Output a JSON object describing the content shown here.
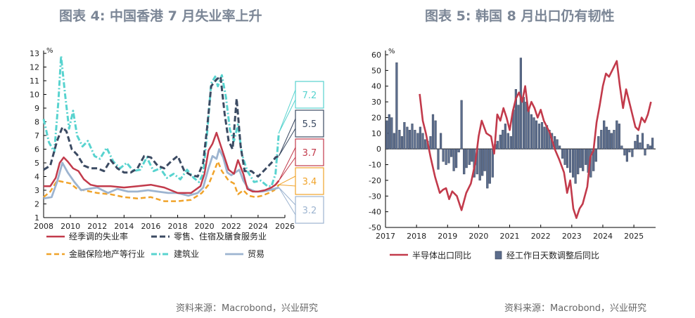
{
  "left_title": "图表 4:  中国香港 7 月失业率上升",
  "right_title": "图表 5:  韩国 8 月出口仍有韧性",
  "left_source": "资料来源：Macrobond，兴业研究",
  "right_source": "资料来源：Macrobond，兴业研究",
  "colors": {
    "unemployment": "#c23a4b",
    "retail": "#3b4a62",
    "finance": "#f0a32a",
    "construction": "#58d3cf",
    "trade": "#9db4d0",
    "semiconductor": "#c23a4b",
    "adjusted_bar": "#5c6d8c"
  },
  "chart_data": [
    {
      "type": "line",
      "title": "中国香港 7 月失业率上升",
      "unit": "%",
      "xlim": [
        2008,
        2026
      ],
      "ylim": [
        1,
        13
      ],
      "x_ticks": [
        "2008",
        "2010",
        "2012",
        "2014",
        "2016",
        "2018",
        "2020",
        "2022",
        "2024",
        "2026"
      ],
      "y_ticks": [
        "1",
        "2",
        "3",
        "4",
        "5",
        "6",
        "7",
        "8",
        "9",
        "10",
        "11",
        "12",
        "13"
      ],
      "legend": [
        "经季调的失业率",
        "零售、住宿及膳食服务业",
        "金融保险地产等行业",
        "建筑业",
        "贸易"
      ],
      "series": [
        {
          "name": "经季调的失业率",
          "style": "solid",
          "x": [
            2008.0,
            2008.5,
            2008.9,
            2009.2,
            2009.5,
            2009.8,
            2010.2,
            2010.6,
            2011.0,
            2011.5,
            2012.0,
            2013.0,
            2014.0,
            2015.0,
            2016.0,
            2017.0,
            2017.5,
            2018.0,
            2019.0,
            2019.7,
            2020.0,
            2020.3,
            2020.6,
            2020.9,
            2021.1,
            2021.4,
            2021.8,
            2022.2,
            2022.5,
            2022.9,
            2023.2,
            2023.6,
            2024.0,
            2024.5,
            2025.0,
            2025.3,
            2025.55
          ],
          "values": [
            3.3,
            3.3,
            3.9,
            5.0,
            5.4,
            5.1,
            4.6,
            4.4,
            3.8,
            3.4,
            3.3,
            3.3,
            3.2,
            3.3,
            3.4,
            3.2,
            3.0,
            2.8,
            2.8,
            3.3,
            4.2,
            5.9,
            6.4,
            7.2,
            6.6,
            5.7,
            4.5,
            4.2,
            5.2,
            4.2,
            3.1,
            2.9,
            2.9,
            3.0,
            3.2,
            3.4,
            3.7
          ]
        },
        {
          "name": "零售、住宿及膳食服务业",
          "style": "dashed",
          "x": [
            2008.0,
            2008.5,
            2009.0,
            2009.4,
            2009.7,
            2010.1,
            2010.5,
            2011.0,
            2011.5,
            2012.0,
            2012.5,
            2013.0,
            2013.5,
            2014.0,
            2014.5,
            2015.0,
            2015.5,
            2016.0,
            2016.5,
            2017.0,
            2017.5,
            2018.0,
            2018.5,
            2019.0,
            2019.5,
            2019.9,
            2020.2,
            2020.5,
            2020.9,
            2021.2,
            2021.5,
            2021.8,
            2022.1,
            2022.4,
            2022.7,
            2023.0,
            2023.5,
            2024.0,
            2024.5,
            2025.0,
            2025.3,
            2025.55
          ],
          "values": [
            4.5,
            4.8,
            6.6,
            7.6,
            7.3,
            6.0,
            5.6,
            4.8,
            4.6,
            4.6,
            4.4,
            5.2,
            4.6,
            4.3,
            4.3,
            4.6,
            5.5,
            5.4,
            4.8,
            4.6,
            5.1,
            5.5,
            4.4,
            4.1,
            4.0,
            5.0,
            7.6,
            10.6,
            11.1,
            11.3,
            8.6,
            6.6,
            6.0,
            9.7,
            6.2,
            4.4,
            4.4,
            4.0,
            4.5,
            5.0,
            5.4,
            5.5
          ]
        },
        {
          "name": "金融保险地产等行业",
          "style": "dashed",
          "x": [
            2008.0,
            2008.5,
            2009.0,
            2009.5,
            2010.0,
            2010.5,
            2011.0,
            2012.0,
            2013.0,
            2014.0,
            2015.0,
            2016.0,
            2017.0,
            2018.0,
            2019.0,
            2019.8,
            2020.3,
            2020.8,
            2021.0,
            2021.3,
            2021.8,
            2022.2,
            2022.5,
            2022.9,
            2023.3,
            2023.8,
            2024.3,
            2024.8,
            2025.2,
            2025.55
          ],
          "values": [
            2.5,
            2.9,
            3.7,
            3.6,
            3.5,
            3.1,
            3.0,
            2.8,
            2.7,
            2.5,
            2.4,
            2.5,
            2.2,
            2.2,
            2.3,
            2.8,
            3.4,
            4.6,
            5.1,
            4.4,
            3.7,
            3.5,
            2.7,
            3.0,
            2.6,
            2.5,
            2.6,
            2.8,
            3.0,
            3.4
          ]
        },
        {
          "name": "建筑业",
          "style": "dashdot",
          "x": [
            2008.0,
            2008.4,
            2008.8,
            2009.1,
            2009.3,
            2009.6,
            2009.9,
            2010.2,
            2010.5,
            2010.9,
            2011.3,
            2011.8,
            2012.2,
            2012.7,
            2013.2,
            2013.7,
            2014.2,
            2014.7,
            2015.2,
            2015.7,
            2016.2,
            2016.7,
            2017.2,
            2017.7,
            2018.2,
            2018.7,
            2019.2,
            2019.6,
            2019.9,
            2020.2,
            2020.5,
            2020.8,
            2021.0,
            2021.3,
            2021.6,
            2021.9,
            2022.2,
            2022.5,
            2022.8,
            2023.2,
            2023.7,
            2024.2,
            2024.7,
            2025.0,
            2025.3,
            2025.55
          ],
          "values": [
            8.2,
            6.5,
            5.8,
            9.5,
            12.8,
            10.0,
            7.5,
            8.8,
            7.0,
            6.2,
            6.6,
            5.5,
            5.3,
            6.1,
            5.1,
            4.6,
            5.0,
            4.4,
            4.5,
            5.4,
            4.4,
            4.6,
            3.9,
            4.2,
            3.8,
            4.5,
            3.9,
            3.6,
            4.2,
            7.2,
            10.8,
            11.3,
            10.6,
            11.4,
            9.8,
            7.4,
            6.6,
            7.8,
            5.6,
            4.4,
            3.6,
            3.7,
            3.3,
            3.3,
            4.2,
            7.2
          ]
        },
        {
          "name": "贸易",
          "style": "solid",
          "x": [
            2008.0,
            2008.6,
            2009.0,
            2009.4,
            2009.8,
            2010.3,
            2010.8,
            2011.3,
            2012.0,
            2012.8,
            2013.5,
            2014.3,
            2015.0,
            2015.8,
            2016.5,
            2017.3,
            2018.0,
            2018.8,
            2019.5,
            2019.9,
            2020.3,
            2020.6,
            2020.9,
            2021.1,
            2021.4,
            2021.7,
            2022.0,
            2022.3,
            2022.6,
            2022.9,
            2023.3,
            2023.8,
            2024.3,
            2024.8,
            2025.2,
            2025.55
          ],
          "values": [
            2.4,
            2.5,
            3.6,
            5.0,
            4.3,
            3.6,
            3.0,
            3.1,
            3.2,
            2.8,
            3.1,
            2.9,
            2.9,
            3.0,
            2.9,
            2.8,
            2.8,
            2.6,
            2.8,
            3.2,
            4.6,
            5.5,
            5.3,
            6.0,
            5.4,
            4.3,
            4.1,
            4.3,
            4.5,
            3.7,
            3.1,
            2.9,
            2.9,
            3.0,
            3.1,
            3.2
          ]
        }
      ],
      "end_labels": [
        "7.2",
        "5.5",
        "3.7",
        "3.4",
        "3.2"
      ]
    },
    {
      "type": "bar+line",
      "title": "韩国 8 月出口仍有韧性",
      "unit": "%",
      "xlim": [
        2017,
        2025.7
      ],
      "ylim": [
        -50,
        60
      ],
      "x_ticks": [
        "2017",
        "2018",
        "2019",
        "2020",
        "2021",
        "2022",
        "2023",
        "2024",
        "2025"
      ],
      "y_ticks": [
        "60",
        "50",
        "40",
        "30",
        "20",
        "10",
        "0",
        "-10",
        "-20",
        "-30",
        "-40",
        "-50"
      ],
      "legend": [
        "半导体出口同比",
        "经工作日天数调整后同比"
      ],
      "line": {
        "name": "半导体出口同比",
        "x": [
          2018.1,
          2018.2,
          2018.3,
          2018.45,
          2018.6,
          2018.75,
          2018.85,
          2018.95,
          2019.05,
          2019.15,
          2019.3,
          2019.45,
          2019.6,
          2019.75,
          2019.9,
          2020.0,
          2020.1,
          2020.25,
          2020.4,
          2020.5,
          2020.6,
          2020.7,
          2020.8,
          2020.9,
          2021.0,
          2021.1,
          2021.2,
          2021.3,
          2021.4,
          2021.5,
          2021.6,
          2021.7,
          2021.8,
          2021.9,
          2022.0,
          2022.1,
          2022.2,
          2022.3,
          2022.45,
          2022.6,
          2022.75,
          2022.85,
          2022.95,
          2023.05,
          2023.15,
          2023.25,
          2023.35,
          2023.5,
          2023.6,
          2023.7,
          2023.8,
          2023.9,
          2024.0,
          2024.1,
          2024.2,
          2024.3,
          2024.45,
          2024.55,
          2024.65,
          2024.75,
          2024.85,
          2024.95,
          2025.05,
          2025.15,
          2025.25,
          2025.35,
          2025.45,
          2025.55
        ],
        "values": [
          35,
          18,
          10,
          -5,
          -18,
          -28,
          -26,
          -25,
          -32,
          -27,
          -30,
          -39,
          -28,
          -22,
          -8,
          8,
          18,
          10,
          8,
          -3,
          22,
          18,
          26,
          20,
          12,
          24,
          32,
          36,
          30,
          40,
          24,
          30,
          26,
          20,
          25,
          18,
          14,
          10,
          0,
          -7,
          -15,
          -28,
          -20,
          -38,
          -44,
          -38,
          -35,
          -24,
          -5,
          -1,
          17,
          28,
          40,
          48,
          46,
          50,
          56,
          40,
          26,
          38,
          30,
          22,
          14,
          12,
          20,
          17,
          22,
          30
        ]
      },
      "bars": {
        "name": "经工作日天数调整后同比",
        "x": [
          2017.04,
          2017.12,
          2017.2,
          2017.28,
          2017.36,
          2017.45,
          2017.53,
          2017.61,
          2017.7,
          2017.78,
          2017.86,
          2017.95,
          2018.04,
          2018.12,
          2018.2,
          2018.28,
          2018.36,
          2018.45,
          2018.53,
          2018.61,
          2018.7,
          2018.78,
          2018.86,
          2018.95,
          2019.04,
          2019.12,
          2019.2,
          2019.28,
          2019.36,
          2019.45,
          2019.53,
          2019.61,
          2019.7,
          2019.78,
          2019.86,
          2019.95,
          2020.04,
          2020.12,
          2020.2,
          2020.28,
          2020.36,
          2020.45,
          2020.53,
          2020.61,
          2020.7,
          2020.78,
          2020.86,
          2020.95,
          2021.04,
          2021.12,
          2021.2,
          2021.28,
          2021.36,
          2021.45,
          2021.53,
          2021.61,
          2021.7,
          2021.78,
          2021.86,
          2021.95,
          2022.04,
          2022.12,
          2022.2,
          2022.28,
          2022.36,
          2022.45,
          2022.53,
          2022.61,
          2022.7,
          2022.78,
          2022.86,
          2022.95,
          2023.04,
          2023.12,
          2023.2,
          2023.28,
          2023.36,
          2023.45,
          2023.53,
          2023.61,
          2023.7,
          2023.78,
          2023.86,
          2023.95,
          2024.04,
          2024.12,
          2024.2,
          2024.28,
          2024.36,
          2024.45,
          2024.53,
          2024.61,
          2024.7,
          2024.78,
          2024.86,
          2024.95,
          2025.04,
          2025.12,
          2025.2,
          2025.28,
          2025.36,
          2025.45,
          2025.53,
          2025.6
        ],
        "values": [
          18,
          22,
          20,
          10,
          55,
          12,
          8,
          17,
          14,
          12,
          16,
          12,
          10,
          14,
          10,
          6,
          5,
          8,
          22,
          18,
          -13,
          10,
          -8,
          -10,
          -9,
          -5,
          -14,
          -12,
          -2,
          31,
          -16,
          -12,
          -10,
          -8,
          -18,
          -16,
          -20,
          -17,
          -14,
          -25,
          -22,
          -18,
          3,
          5,
          9,
          12,
          16,
          10,
          8,
          25,
          38,
          28,
          58,
          33,
          30,
          25,
          22,
          20,
          18,
          16,
          17,
          14,
          15,
          12,
          10,
          8,
          6,
          2,
          -6,
          -10,
          -12,
          -15,
          -18,
          -22,
          -16,
          -12,
          -14,
          -10,
          -15,
          -18,
          -14,
          -8,
          8,
          12,
          18,
          14,
          12,
          10,
          12,
          18,
          16,
          2,
          -4,
          -8,
          -2,
          -5,
          5,
          9,
          4,
          10,
          -4,
          3,
          2,
          7
        ]
      }
    }
  ]
}
